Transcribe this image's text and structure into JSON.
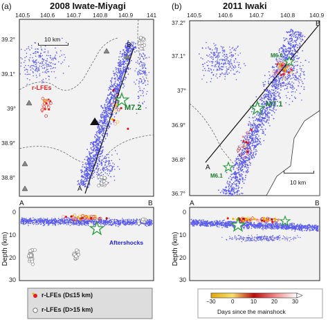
{
  "panels": {
    "a": {
      "label": "(a)",
      "title": "2008 Iwate-Miyagi"
    },
    "b": {
      "label": "(b)",
      "title": "2011 Iwaki"
    }
  },
  "map_a": {
    "lon_ticks": [
      "140.5",
      "140.6",
      "140.7",
      "140.8",
      "140.9",
      "141"
    ],
    "lat_ticks": [
      "39.2",
      "39.1",
      "39",
      "38.9",
      "38.8"
    ],
    "lat_tick_suffix": "°",
    "scale": "10 km",
    "profile_start": "A",
    "profile_end": "B",
    "mainshock": "M7.2",
    "rlfe_label": "r-LFEs"
  },
  "map_b": {
    "lon_ticks": [
      "140.5",
      "140.6",
      "140.7",
      "140.8",
      "140.9"
    ],
    "lat_ticks": [
      "37.2",
      "37.1",
      "37",
      "36.9",
      "36.8",
      "36.7"
    ],
    "lat_tick_suffix": "°",
    "scale": "10 km",
    "profile_start": "A",
    "profile_end": "B",
    "mainshock": "M7.1",
    "events": [
      "M6.0",
      "M6.1"
    ]
  },
  "section_a": {
    "start": "A",
    "end": "B",
    "ylabel": "Depth (km)",
    "yticks": [
      "0",
      "10",
      "20",
      "30"
    ],
    "aftershock_label": "Aftershocks"
  },
  "section_b": {
    "start": "A",
    "end": "B",
    "ylabel": "Depth (km)",
    "yticks": [
      "0",
      "10",
      "20",
      "30"
    ]
  },
  "legend": {
    "shallow": "r-LFEs (D≤15 km)",
    "deep": "r-LFEs (D>15 km)"
  },
  "colorbar": {
    "ticks": [
      "−30",
      "0",
      "10",
      "20",
      "30"
    ],
    "label": "Days since the mainshock"
  },
  "colors": {
    "aftershock": "#5a5aee",
    "shallow_lfe": "#e02020",
    "deep_lfe": "#777777",
    "mainshock_star": "#2e9e3e",
    "volcano": "#888888"
  }
}
